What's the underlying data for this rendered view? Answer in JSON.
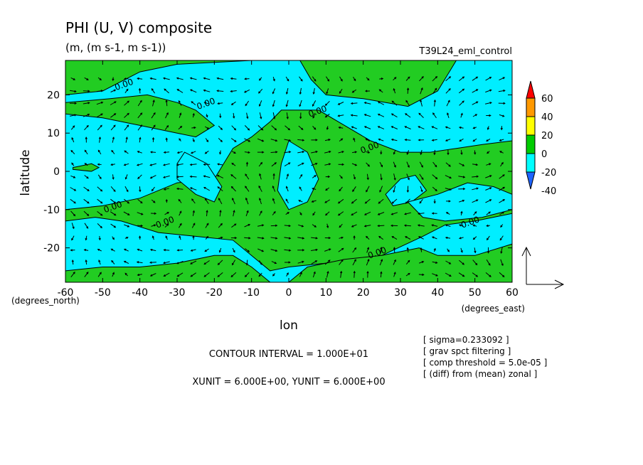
{
  "chart_data": {
    "type": "heatmap",
    "title": "PHI (U, V) composite",
    "subtitle": "(m, (m s-1, m s-1))",
    "run_label": "T39L24_eml_control",
    "xlabel": "lon",
    "ylabel": "latitude",
    "x_unit_label": "(degrees_east)",
    "y_unit_label": "(degrees_north)",
    "xlim": [
      -60,
      60
    ],
    "ylim": [
      -29,
      29
    ],
    "x_ticks": [
      -60,
      -50,
      -40,
      -30,
      -20,
      -10,
      0,
      10,
      20,
      30,
      40,
      50,
      60
    ],
    "y_ticks": [
      -20,
      -10,
      0,
      10,
      20
    ],
    "x_tick_labels": [
      "-60",
      "-50",
      "-40",
      "-30",
      "-20",
      "-10",
      "0",
      "10",
      "20",
      "30",
      "40",
      "50",
      "60"
    ],
    "y_tick_labels": [
      "-20",
      "-10",
      "0",
      "10",
      "20"
    ],
    "colorbar": {
      "levels": [
        -40,
        -20,
        0,
        20,
        40,
        60
      ],
      "labels": [
        "-40",
        "-20",
        "0",
        "20",
        "40",
        "60"
      ],
      "colors": [
        "#1e90ff",
        "#00ffff",
        "#00cc00",
        "#ffff00",
        "#ff9900",
        "#ff0000"
      ],
      "under_color": "#1e64ff",
      "over_color": "#ff0000"
    },
    "fill_colors": {
      "positive": "#22cc22",
      "negative": "#00eeff"
    },
    "contour_labels": [
      {
        "text": "0.00",
        "lon": -44,
        "lat": 22
      },
      {
        "text": "0.00",
        "lon": -22,
        "lat": 17
      },
      {
        "text": "0.00",
        "lon": 8,
        "lat": 15
      },
      {
        "text": "0.00",
        "lon": 22,
        "lat": 5.5
      },
      {
        "text": "0.00",
        "lon": -47,
        "lat": -10
      },
      {
        "text": "0.00",
        "lon": -33,
        "lat": -14
      },
      {
        "text": "0.00",
        "lon": 49,
        "lat": -14
      },
      {
        "text": "0.00",
        "lon": 24,
        "lat": -22
      }
    ],
    "positive_regions": [
      [
        [
          -60,
          20
        ],
        [
          -50,
          21
        ],
        [
          -40,
          26
        ],
        [
          -30,
          28
        ],
        [
          -20,
          28.5
        ],
        [
          -10,
          29
        ],
        [
          -60,
          29
        ]
      ],
      [
        [
          3,
          29
        ],
        [
          6,
          24
        ],
        [
          10,
          20
        ],
        [
          20,
          19
        ],
        [
          32,
          17
        ],
        [
          40,
          21
        ],
        [
          45,
          29
        ]
      ],
      [
        [
          -60,
          15
        ],
        [
          -50,
          14
        ],
        [
          -40,
          12
        ],
        [
          -30,
          10
        ],
        [
          -25,
          9
        ],
        [
          -20,
          12
        ],
        [
          -25,
          16
        ],
        [
          -30,
          18
        ],
        [
          -38,
          20
        ],
        [
          -48,
          19
        ],
        [
          -60,
          18
        ]
      ],
      [
        [
          -60,
          -10
        ],
        [
          -50,
          -9
        ],
        [
          -40,
          -7
        ],
        [
          -30,
          -3
        ],
        [
          -20,
          -2
        ],
        [
          -15,
          6
        ],
        [
          -10,
          9
        ],
        [
          -5,
          13
        ],
        [
          -2,
          16
        ],
        [
          3,
          16
        ],
        [
          8,
          16
        ],
        [
          15,
          12
        ],
        [
          22,
          8
        ],
        [
          30,
          5
        ],
        [
          38,
          5
        ],
        [
          45,
          6
        ],
        [
          52,
          7
        ],
        [
          60,
          8
        ],
        [
          60,
          -11
        ],
        [
          50,
          -13
        ],
        [
          42,
          -14
        ],
        [
          36,
          -17
        ],
        [
          25,
          -22
        ],
        [
          10,
          -24
        ],
        [
          0,
          -25
        ],
        [
          -5,
          -26
        ],
        [
          -15,
          -18
        ],
        [
          -25,
          -17
        ],
        [
          -35,
          -16
        ],
        [
          -45,
          -13
        ],
        [
          -52,
          -12
        ],
        [
          -60,
          -13
        ]
      ],
      [
        [
          -60,
          -26
        ],
        [
          -50,
          -25
        ],
        [
          -40,
          -25
        ],
        [
          -30,
          -24
        ],
        [
          -20,
          -22
        ],
        [
          -15,
          -22
        ],
        [
          -10,
          -25
        ],
        [
          -5,
          -29
        ],
        [
          -60,
          -29
        ]
      ],
      [
        [
          0,
          -29
        ],
        [
          5,
          -25
        ],
        [
          15,
          -23
        ],
        [
          25,
          -22
        ],
        [
          35,
          -20
        ],
        [
          40,
          -22
        ],
        [
          50,
          -22
        ],
        [
          60,
          -19
        ],
        [
          60,
          -29
        ]
      ],
      [
        [
          -58,
          1
        ],
        [
          -53,
          2
        ],
        [
          -51,
          1
        ],
        [
          -53,
          0
        ],
        [
          -58,
          0.5
        ]
      ]
    ],
    "negative_regions": [
      [
        [
          -28,
          5
        ],
        [
          -22,
          2
        ],
        [
          -18,
          -4
        ],
        [
          -20,
          -8
        ],
        [
          -25,
          -6
        ],
        [
          -30,
          -2
        ],
        [
          -30,
          2
        ]
      ],
      [
        [
          0,
          8
        ],
        [
          5,
          5
        ],
        [
          8,
          -2
        ],
        [
          5,
          -8
        ],
        [
          0,
          -10
        ],
        [
          -3,
          -5
        ],
        [
          -2,
          2
        ]
      ],
      [
        [
          26,
          -6
        ],
        [
          30,
          -2
        ],
        [
          34,
          -1
        ],
        [
          37,
          -5
        ],
        [
          33,
          -8
        ],
        [
          28,
          -9
        ]
      ],
      [
        [
          32,
          -8
        ],
        [
          40,
          -6
        ],
        [
          48,
          -3
        ],
        [
          55,
          -4
        ],
        [
          60,
          -6
        ],
        [
          60,
          -10
        ],
        [
          52,
          -12
        ],
        [
          42,
          -13
        ],
        [
          36,
          -12
        ]
      ]
    ],
    "vector_scale": {
      "xunit": 6.0,
      "yunit": 6.0
    }
  },
  "annotations": {
    "contour_interval": "CONTOUR INTERVAL = 1.000E+01",
    "units": "XUNIT = 6.000E+00, YUNIT = 6.000E+00",
    "info_lines": [
      "[ sigma=0.233092 ]",
      "[ grav spct filtering ]",
      "[ comp threshold = 5.0e-05 ]",
      "[ (diff) from (mean) zonal ]"
    ]
  }
}
